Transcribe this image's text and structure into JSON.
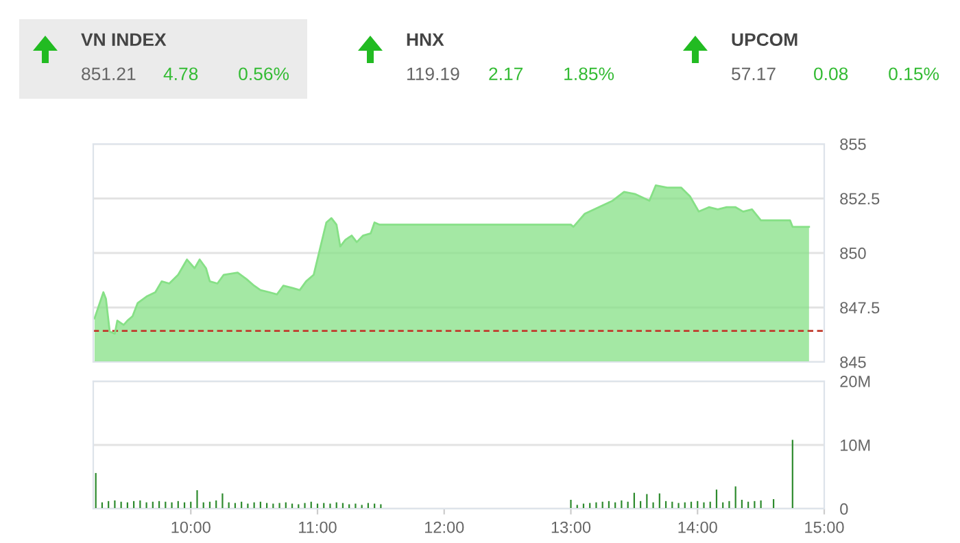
{
  "chart_data": [
    {
      "type": "other",
      "annotations": [
        "VN INDEX",
        "851.21",
        "4.78",
        "0.56%",
        "HNX",
        "119.19",
        "2.17",
        "1.85%",
        "UPCOM",
        "57.17",
        "0.08",
        "0.15%"
      ]
    },
    {
      "type": "area",
      "color": "#86e086",
      "x": [
        9.24,
        9.31,
        9.33,
        9.36,
        9.4,
        9.42,
        9.47,
        9.5,
        9.54,
        9.58,
        9.65,
        9.72,
        9.77,
        9.83,
        9.9,
        9.97,
        10.03,
        10.07,
        10.12,
        10.15,
        10.21,
        10.26,
        10.37,
        10.44,
        10.5,
        10.55,
        10.62,
        10.68,
        10.73,
        10.8,
        10.86,
        10.91,
        10.97,
        11.02,
        11.07,
        11.11,
        11.15,
        11.18,
        11.22,
        11.27,
        11.31,
        11.36,
        11.42,
        11.45,
        11.49,
        13.0,
        13.02,
        13.11,
        13.22,
        13.33,
        13.42,
        13.51,
        13.62,
        13.67,
        13.76,
        13.87,
        13.94,
        14.01,
        14.09,
        14.16,
        14.23,
        14.3,
        14.36,
        14.43,
        14.5,
        14.73,
        14.75,
        14.88
      ],
      "values": [
        847.0,
        848.2,
        847.9,
        846.4,
        846.3,
        846.9,
        846.7,
        846.9,
        847.1,
        847.7,
        848.0,
        848.2,
        848.7,
        848.6,
        849.0,
        849.7,
        849.3,
        849.7,
        849.3,
        848.7,
        848.6,
        849.0,
        849.1,
        848.8,
        848.5,
        848.3,
        848.2,
        848.1,
        848.5,
        848.4,
        848.3,
        848.7,
        849.0,
        850.2,
        851.4,
        851.6,
        851.3,
        850.3,
        850.6,
        850.8,
        850.5,
        850.8,
        850.9,
        851.4,
        851.3,
        851.3,
        851.2,
        851.8,
        852.1,
        852.4,
        852.8,
        852.7,
        852.4,
        853.1,
        853.0,
        853.0,
        852.6,
        851.9,
        852.1,
        852.0,
        852.1,
        852.1,
        851.9,
        852.0,
        851.5,
        851.5,
        851.2,
        851.2
      ],
      "xlim": [
        9.23,
        15.0
      ],
      "ylim": [
        845,
        855
      ],
      "yticks": [
        845,
        847.5,
        850,
        852.5,
        855
      ],
      "grid": "y",
      "tick_labels": "y",
      "ref_lines": [
        {
          "axis": "y",
          "value": 846.43,
          "color": "#c0392b",
          "line_style": "dashed"
        }
      ]
    },
    {
      "type": "bar",
      "color": "#2e8b2e",
      "x": [
        9.25,
        9.3,
        9.35,
        9.4,
        9.45,
        9.5,
        9.55,
        9.6,
        9.65,
        9.7,
        9.75,
        9.8,
        9.85,
        9.9,
        9.95,
        10.0,
        10.05,
        10.1,
        10.15,
        10.2,
        10.25,
        10.3,
        10.35,
        10.4,
        10.45,
        10.5,
        10.55,
        10.6,
        10.65,
        10.7,
        10.75,
        10.8,
        10.85,
        10.9,
        10.95,
        11.0,
        11.05,
        11.1,
        11.15,
        11.2,
        11.25,
        11.3,
        11.35,
        11.4,
        11.45,
        11.5,
        13.0,
        13.05,
        13.1,
        13.15,
        13.2,
        13.25,
        13.3,
        13.35,
        13.4,
        13.45,
        13.5,
        13.55,
        13.6,
        13.65,
        13.7,
        13.75,
        13.8,
        13.85,
        13.9,
        13.95,
        14.0,
        14.05,
        14.1,
        14.15,
        14.2,
        14.25,
        14.3,
        14.35,
        14.4,
        14.45,
        14.5,
        14.6,
        14.75
      ],
      "values": [
        5.6,
        1.0,
        1.2,
        1.3,
        1.1,
        1.0,
        1.2,
        1.3,
        1.0,
        1.1,
        1.2,
        1.1,
        1.0,
        1.2,
        1.0,
        1.1,
        2.9,
        1.0,
        1.1,
        1.3,
        2.4,
        1.0,
        0.9,
        1.1,
        0.8,
        1.0,
        1.1,
        0.9,
        0.8,
        0.9,
        1.0,
        0.8,
        0.7,
        0.9,
        1.1,
        0.8,
        0.9,
        0.8,
        1.0,
        0.9,
        0.7,
        0.8,
        0.6,
        0.9,
        0.8,
        0.7,
        1.4,
        0.6,
        0.8,
        0.9,
        1.0,
        1.1,
        1.2,
        1.0,
        1.3,
        1.1,
        2.5,
        1.2,
        2.3,
        1.0,
        2.4,
        1.2,
        1.1,
        0.9,
        1.0,
        1.1,
        1.2,
        1.0,
        1.1,
        3.0,
        1.0,
        1.2,
        3.5,
        1.4,
        1.1,
        1.2,
        1.3,
        1.5,
        10.8
      ],
      "xlim": [
        9.23,
        15.0
      ],
      "xticks": [
        {
          "value": 10,
          "label": "10:00"
        },
        {
          "value": 11,
          "label": "11:00"
        },
        {
          "value": 12,
          "label": "12:00"
        },
        {
          "value": 13,
          "label": "13:00"
        },
        {
          "value": 14,
          "label": "14:00"
        },
        {
          "value": 15,
          "label": "15:00"
        }
      ],
      "ylim": [
        0,
        20
      ],
      "yticks": [
        {
          "value": 0,
          "label": "0"
        },
        {
          "value": 10,
          "label": "10M"
        },
        {
          "value": 20,
          "label": "20M"
        }
      ],
      "grid": "y"
    }
  ]
}
